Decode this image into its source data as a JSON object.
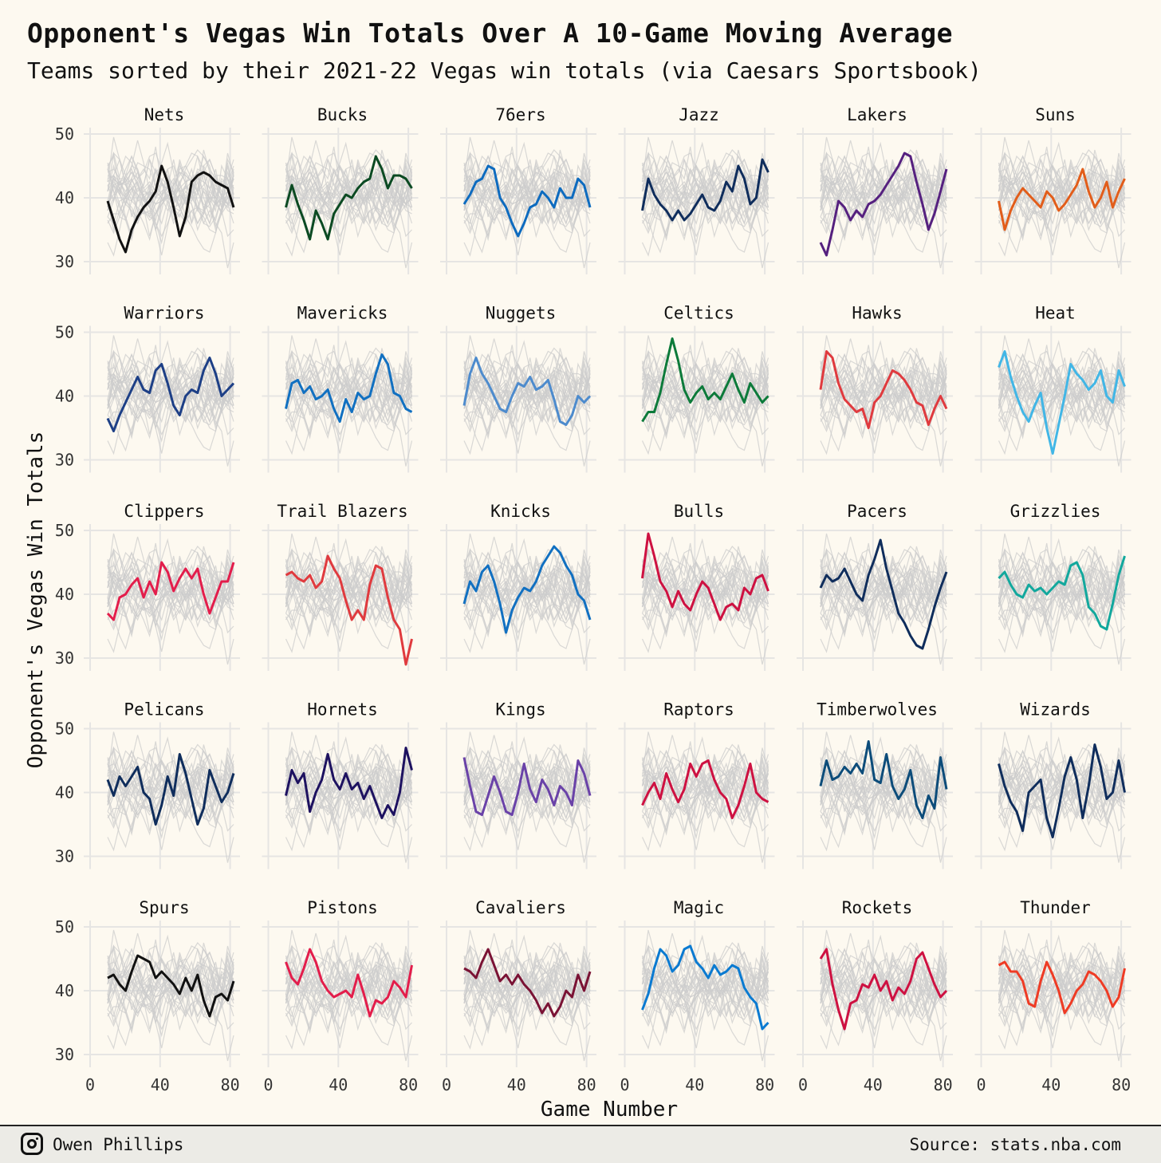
{
  "header": {
    "title": "Opponent's Vegas Win Totals Over A 10-Game Moving Average",
    "subtitle": "Teams sorted by their 2021-22 Vegas win totals (via Caesars Sportsbook)"
  },
  "footer": {
    "author": "Owen Phillips",
    "source": "Source: stats.nba.com"
  },
  "chart_data": {
    "type": "line",
    "layout": "small-multiples",
    "xlabel": "Game Number",
    "ylabel": "Opponent's Vegas Win Totals",
    "xlim": [
      0,
      82
    ],
    "ylim": [
      30,
      50
    ],
    "x_ticks": [
      0,
      40,
      80
    ],
    "y_ticks": [
      30,
      40,
      50
    ],
    "grid": true,
    "x_start": 10,
    "x_end": 82,
    "background_series_color": "#cccccc",
    "series": [
      {
        "name": "Nets",
        "color": "#111111",
        "values": [
          39.5,
          36.5,
          33.5,
          31.5,
          35,
          37,
          38.5,
          39.5,
          41,
          45,
          42.5,
          38.5,
          34,
          37,
          42.5,
          43.5,
          44,
          43.5,
          42.5,
          42,
          41.5,
          38.5
        ]
      },
      {
        "name": "Bucks",
        "color": "#0b4a22",
        "values": [
          38.5,
          42,
          39,
          36.5,
          33.5,
          38,
          36,
          33.5,
          37.5,
          39,
          40.5,
          40,
          41.5,
          42.5,
          43,
          46.5,
          44.5,
          41.5,
          43.5,
          43.5,
          43,
          41.5
        ]
      },
      {
        "name": "76ers",
        "color": "#0d6bbf",
        "values": [
          39,
          40.5,
          42.5,
          43,
          45,
          44.5,
          40,
          38.5,
          36,
          34,
          36,
          38.5,
          39,
          41,
          40,
          38.5,
          41.5,
          40,
          40,
          43,
          42,
          38.5
        ]
      },
      {
        "name": "Jazz",
        "color": "#0f2d5c",
        "values": [
          38,
          43,
          40.5,
          39,
          38,
          36.5,
          38,
          36.5,
          37.5,
          39,
          40.5,
          38.5,
          38,
          39.5,
          42.5,
          41,
          45,
          43,
          39,
          40,
          46,
          44
        ]
      },
      {
        "name": "Lakers",
        "color": "#55207f",
        "values": [
          33,
          31,
          35,
          39.5,
          38.5,
          36.5,
          38,
          37,
          39,
          39.5,
          40.5,
          42,
          43.5,
          45,
          47,
          46.5,
          42.5,
          39,
          35,
          37.5,
          41,
          44.5
        ]
      },
      {
        "name": "Suns",
        "color": "#e25d1a",
        "values": [
          39.5,
          35,
          38,
          40,
          41.5,
          40.5,
          39.5,
          38.5,
          41,
          40,
          38,
          39,
          40.5,
          42,
          44.5,
          41,
          38.5,
          40,
          42.5,
          38.5,
          41,
          43
        ]
      },
      {
        "name": "Warriors",
        "color": "#1d3f86",
        "values": [
          36.5,
          34.5,
          37,
          39,
          41,
          43,
          41,
          40.5,
          44,
          45,
          42,
          38.5,
          37,
          40,
          41,
          40.5,
          44,
          46,
          43.5,
          40,
          41,
          42
        ]
      },
      {
        "name": "Mavericks",
        "color": "#1170c1",
        "values": [
          38,
          42,
          42.5,
          40.5,
          41.5,
          39.5,
          40,
          41,
          38,
          36,
          39.5,
          37.5,
          40.5,
          39.5,
          40,
          43.5,
          46.5,
          45,
          40.5,
          40,
          38,
          37.5
        ]
      },
      {
        "name": "Nuggets",
        "color": "#4d8bcd",
        "values": [
          38.5,
          43.5,
          46,
          43.5,
          42,
          40,
          38,
          37.5,
          40,
          42,
          41.5,
          43,
          41,
          41.5,
          42.5,
          39.5,
          36,
          35.5,
          37,
          40,
          39,
          40
        ]
      },
      {
        "name": "Celtics",
        "color": "#0c7a3a",
        "values": [
          36,
          37.5,
          37.5,
          40.5,
          45,
          49,
          45.5,
          41,
          39,
          40.5,
          41.5,
          39.5,
          40.5,
          39.5,
          41.5,
          43.5,
          41,
          39,
          42,
          40.5,
          39,
          40
        ]
      },
      {
        "name": "Hawks",
        "color": "#e03a3e",
        "values": [
          41,
          47,
          46,
          42,
          39.5,
          38.5,
          37.5,
          38,
          35,
          39,
          40,
          42,
          44,
          43.5,
          42.5,
          41,
          39,
          38.5,
          35.5,
          38,
          40,
          38
        ]
      },
      {
        "name": "Heat",
        "color": "#41b6e6",
        "values": [
          44.5,
          47,
          43,
          40,
          37.5,
          36,
          38.5,
          40.5,
          35,
          31,
          35.5,
          40,
          45,
          43.5,
          42.5,
          41,
          42,
          44,
          40,
          39,
          44,
          41.5
        ]
      },
      {
        "name": "Clippers",
        "color": "#e31d4b",
        "values": [
          37,
          36,
          39.5,
          40,
          41.5,
          42.5,
          39.5,
          42,
          40,
          45,
          43.5,
          40.5,
          42.5,
          44,
          42.5,
          44,
          40,
          37,
          39.5,
          42,
          42,
          45
        ]
      },
      {
        "name": "Trail Blazers",
        "color": "#e03a3e",
        "values": [
          43,
          43.5,
          42.5,
          42,
          43,
          41,
          42,
          46,
          44,
          42.5,
          39,
          36,
          37.5,
          36,
          41.5,
          44.5,
          44,
          39.5,
          36,
          34.5,
          29,
          33
        ]
      },
      {
        "name": "Knicks",
        "color": "#1170c1",
        "values": [
          38.5,
          42,
          40.5,
          43.5,
          44.5,
          42,
          38.5,
          34,
          37.5,
          39.5,
          41,
          40.5,
          42,
          44.5,
          46,
          47.5,
          46.5,
          44.5,
          43,
          40,
          39,
          36
        ]
      },
      {
        "name": "Bulls",
        "color": "#ce1141",
        "values": [
          42.5,
          49.5,
          46,
          42,
          40.5,
          38,
          40.5,
          38.5,
          37.5,
          40,
          42,
          41,
          38.5,
          36,
          38,
          38.5,
          37.5,
          41,
          40,
          42.5,
          43,
          40.5
        ]
      },
      {
        "name": "Pacers",
        "color": "#0f2d5c",
        "values": [
          41,
          43,
          42,
          42.5,
          44,
          42,
          40,
          39,
          43,
          45.5,
          48.5,
          44,
          40.5,
          37,
          35.5,
          33.5,
          32,
          31.5,
          34.5,
          38,
          41,
          43.5
        ]
      },
      {
        "name": "Grizzlies",
        "color": "#12a89d",
        "values": [
          42.5,
          43.5,
          41.5,
          40,
          39.5,
          41.5,
          40.5,
          41,
          40,
          41,
          42,
          41.5,
          44.5,
          45,
          43,
          38,
          37,
          35,
          34.5,
          38.5,
          43,
          46
        ]
      },
      {
        "name": "Pelicans",
        "color": "#0f2d5c",
        "values": [
          42,
          39.5,
          42.5,
          41,
          42.5,
          44,
          40,
          39,
          35,
          38,
          42.5,
          39.5,
          46,
          43,
          39,
          35,
          37.5,
          43.5,
          41,
          38.5,
          40,
          43
        ]
      },
      {
        "name": "Hornets",
        "color": "#1d1160",
        "values": [
          39.5,
          43.5,
          41.5,
          43,
          37,
          40,
          42,
          46,
          42,
          40.5,
          43,
          40.5,
          41.5,
          39,
          41,
          38.5,
          36,
          38,
          36.5,
          40,
          47,
          43.5
        ]
      },
      {
        "name": "Kings",
        "color": "#6a42a8",
        "values": [
          45.5,
          41,
          37,
          36.5,
          39.5,
          42.5,
          40,
          37,
          36.5,
          40,
          44.5,
          40.5,
          38.5,
          42,
          40.5,
          38,
          41,
          40,
          38,
          45,
          43,
          39.5
        ]
      },
      {
        "name": "Raptors",
        "color": "#ce1141",
        "values": [
          38,
          40,
          41.5,
          39,
          43,
          40.5,
          38.5,
          40.5,
          44.5,
          42.5,
          44.5,
          45,
          42,
          40,
          39,
          36,
          38,
          41,
          44.5,
          40,
          39,
          38.5
        ]
      },
      {
        "name": "Timberwolves",
        "color": "#0c4c7a",
        "values": [
          41,
          45,
          42,
          42.5,
          44,
          43,
          44.5,
          43,
          48,
          42,
          41.5,
          46,
          41,
          39,
          40.5,
          43.5,
          38,
          36,
          39.5,
          37.5,
          45.5,
          40.5
        ]
      },
      {
        "name": "Wizards",
        "color": "#0f2d5c",
        "values": [
          44.5,
          41,
          38.5,
          37,
          34,
          40,
          41,
          42,
          36,
          33,
          37.5,
          42.5,
          45.5,
          42,
          36,
          41,
          47.5,
          44,
          39,
          40,
          45,
          40
        ]
      },
      {
        "name": "Spurs",
        "color": "#111111",
        "values": [
          42,
          42.5,
          41,
          40,
          43,
          45.5,
          45,
          44.5,
          42,
          43,
          42,
          41,
          39.5,
          42,
          40,
          42.5,
          38.5,
          36,
          39,
          39.5,
          38.5,
          41.5
        ]
      },
      {
        "name": "Pistons",
        "color": "#e31d4b",
        "values": [
          44.5,
          42,
          41,
          43.5,
          46.5,
          44.5,
          41.5,
          40,
          39,
          39.5,
          40,
          39,
          42.5,
          39.5,
          36,
          38.5,
          38,
          39,
          41.5,
          40.5,
          39,
          44
        ]
      },
      {
        "name": "Cavaliers",
        "color": "#7a1234",
        "values": [
          43.5,
          43,
          42,
          44.5,
          46.5,
          44,
          41.5,
          42.5,
          41,
          42.5,
          41,
          40,
          38.5,
          36.5,
          38,
          36,
          37.5,
          40,
          39,
          42.5,
          40,
          43
        ]
      },
      {
        "name": "Magic",
        "color": "#0a7ad1",
        "values": [
          37,
          39.5,
          43.5,
          46.5,
          45.5,
          43,
          44,
          46.5,
          47,
          44.5,
          43.5,
          42,
          44,
          42.5,
          43,
          44,
          43.5,
          40.5,
          39,
          38,
          34,
          35
        ]
      },
      {
        "name": "Rockets",
        "color": "#ce1141",
        "values": [
          45,
          46.5,
          41,
          37,
          34,
          38,
          38.5,
          41,
          40.5,
          42.5,
          40,
          41.5,
          38.5,
          40.5,
          39.5,
          41.5,
          45,
          46,
          43.5,
          41,
          39,
          40
        ]
      },
      {
        "name": "Thunder",
        "color": "#ef3b24",
        "values": [
          44,
          44.5,
          43,
          43,
          41.5,
          38,
          37.5,
          41.5,
          44.5,
          42.5,
          40,
          36.5,
          38,
          40,
          41,
          43,
          42.5,
          41.5,
          40,
          37.5,
          39,
          43.5
        ]
      }
    ]
  }
}
